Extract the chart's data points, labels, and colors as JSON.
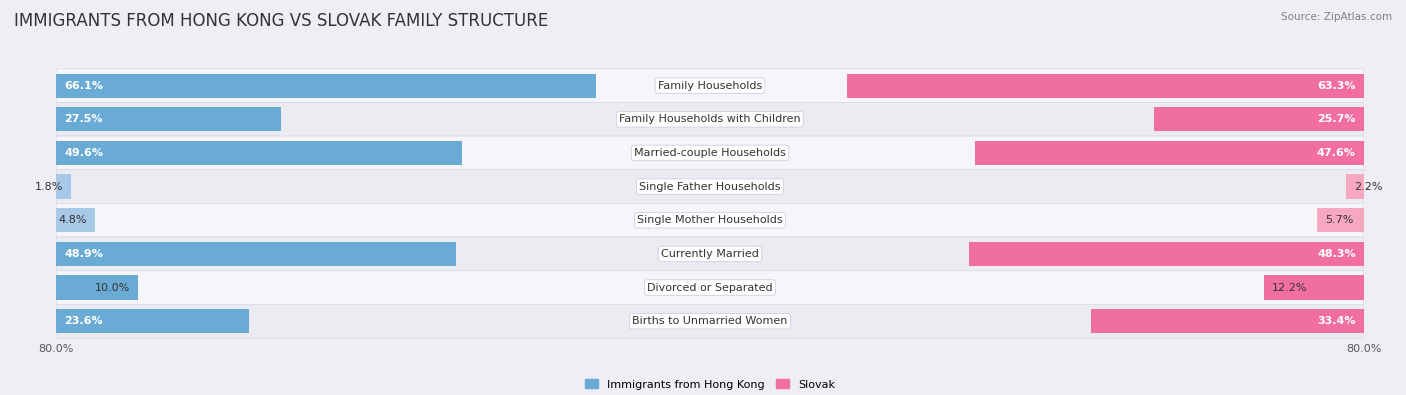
{
  "title": "IMMIGRANTS FROM HONG KONG VS SLOVAK FAMILY STRUCTURE",
  "source": "Source: ZipAtlas.com",
  "categories": [
    "Family Households",
    "Family Households with Children",
    "Married-couple Households",
    "Single Father Households",
    "Single Mother Households",
    "Currently Married",
    "Divorced or Separated",
    "Births to Unmarried Women"
  ],
  "hk_values": [
    66.1,
    27.5,
    49.6,
    1.8,
    4.8,
    48.9,
    10.0,
    23.6
  ],
  "slovak_values": [
    63.3,
    25.7,
    47.6,
    2.2,
    5.7,
    48.3,
    12.2,
    33.4
  ],
  "max_val": 80.0,
  "hk_color_strong": "#6aabd6",
  "hk_color_light": "#a8c8e8",
  "slovak_color_strong": "#f06fa0",
  "slovak_color_light": "#f5a8c0",
  "bg_color": "#eeeef4",
  "row_bg_even": "#f5f5fa",
  "row_bg_odd": "#ebebf2",
  "row_border": "#d8d8e8",
  "label_color": "#333333",
  "legend_hk": "Immigrants from Hong Kong",
  "legend_slovak": "Slovak",
  "title_fontsize": 12,
  "label_fontsize": 8,
  "value_fontsize": 8,
  "cat_fontsize": 8
}
